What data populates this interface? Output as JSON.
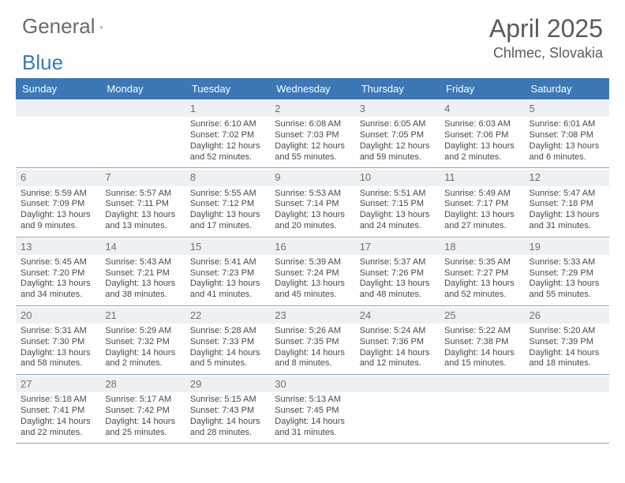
{
  "logo": {
    "text_a": "General",
    "text_b": "Blue"
  },
  "title": "April 2025",
  "location": "Chlmec, Slovakia",
  "colors": {
    "header_bg": "#3b78b5",
    "header_text": "#ffffff",
    "daynum_bg": "#eef1f4",
    "border": "#8aa9c7"
  },
  "day_headers": [
    "Sunday",
    "Monday",
    "Tuesday",
    "Wednesday",
    "Thursday",
    "Friday",
    "Saturday"
  ],
  "weeks": [
    [
      {
        "n": "",
        "sr": "",
        "ss": "",
        "dl": ""
      },
      {
        "n": "",
        "sr": "",
        "ss": "",
        "dl": ""
      },
      {
        "n": "1",
        "sr": "Sunrise: 6:10 AM",
        "ss": "Sunset: 7:02 PM",
        "dl": "Daylight: 12 hours and 52 minutes."
      },
      {
        "n": "2",
        "sr": "Sunrise: 6:08 AM",
        "ss": "Sunset: 7:03 PM",
        "dl": "Daylight: 12 hours and 55 minutes."
      },
      {
        "n": "3",
        "sr": "Sunrise: 6:05 AM",
        "ss": "Sunset: 7:05 PM",
        "dl": "Daylight: 12 hours and 59 minutes."
      },
      {
        "n": "4",
        "sr": "Sunrise: 6:03 AM",
        "ss": "Sunset: 7:06 PM",
        "dl": "Daylight: 13 hours and 2 minutes."
      },
      {
        "n": "5",
        "sr": "Sunrise: 6:01 AM",
        "ss": "Sunset: 7:08 PM",
        "dl": "Daylight: 13 hours and 6 minutes."
      }
    ],
    [
      {
        "n": "6",
        "sr": "Sunrise: 5:59 AM",
        "ss": "Sunset: 7:09 PM",
        "dl": "Daylight: 13 hours and 9 minutes."
      },
      {
        "n": "7",
        "sr": "Sunrise: 5:57 AM",
        "ss": "Sunset: 7:11 PM",
        "dl": "Daylight: 13 hours and 13 minutes."
      },
      {
        "n": "8",
        "sr": "Sunrise: 5:55 AM",
        "ss": "Sunset: 7:12 PM",
        "dl": "Daylight: 13 hours and 17 minutes."
      },
      {
        "n": "9",
        "sr": "Sunrise: 5:53 AM",
        "ss": "Sunset: 7:14 PM",
        "dl": "Daylight: 13 hours and 20 minutes."
      },
      {
        "n": "10",
        "sr": "Sunrise: 5:51 AM",
        "ss": "Sunset: 7:15 PM",
        "dl": "Daylight: 13 hours and 24 minutes."
      },
      {
        "n": "11",
        "sr": "Sunrise: 5:49 AM",
        "ss": "Sunset: 7:17 PM",
        "dl": "Daylight: 13 hours and 27 minutes."
      },
      {
        "n": "12",
        "sr": "Sunrise: 5:47 AM",
        "ss": "Sunset: 7:18 PM",
        "dl": "Daylight: 13 hours and 31 minutes."
      }
    ],
    [
      {
        "n": "13",
        "sr": "Sunrise: 5:45 AM",
        "ss": "Sunset: 7:20 PM",
        "dl": "Daylight: 13 hours and 34 minutes."
      },
      {
        "n": "14",
        "sr": "Sunrise: 5:43 AM",
        "ss": "Sunset: 7:21 PM",
        "dl": "Daylight: 13 hours and 38 minutes."
      },
      {
        "n": "15",
        "sr": "Sunrise: 5:41 AM",
        "ss": "Sunset: 7:23 PM",
        "dl": "Daylight: 13 hours and 41 minutes."
      },
      {
        "n": "16",
        "sr": "Sunrise: 5:39 AM",
        "ss": "Sunset: 7:24 PM",
        "dl": "Daylight: 13 hours and 45 minutes."
      },
      {
        "n": "17",
        "sr": "Sunrise: 5:37 AM",
        "ss": "Sunset: 7:26 PM",
        "dl": "Daylight: 13 hours and 48 minutes."
      },
      {
        "n": "18",
        "sr": "Sunrise: 5:35 AM",
        "ss": "Sunset: 7:27 PM",
        "dl": "Daylight: 13 hours and 52 minutes."
      },
      {
        "n": "19",
        "sr": "Sunrise: 5:33 AM",
        "ss": "Sunset: 7:29 PM",
        "dl": "Daylight: 13 hours and 55 minutes."
      }
    ],
    [
      {
        "n": "20",
        "sr": "Sunrise: 5:31 AM",
        "ss": "Sunset: 7:30 PM",
        "dl": "Daylight: 13 hours and 58 minutes."
      },
      {
        "n": "21",
        "sr": "Sunrise: 5:29 AM",
        "ss": "Sunset: 7:32 PM",
        "dl": "Daylight: 14 hours and 2 minutes."
      },
      {
        "n": "22",
        "sr": "Sunrise: 5:28 AM",
        "ss": "Sunset: 7:33 PM",
        "dl": "Daylight: 14 hours and 5 minutes."
      },
      {
        "n": "23",
        "sr": "Sunrise: 5:26 AM",
        "ss": "Sunset: 7:35 PM",
        "dl": "Daylight: 14 hours and 8 minutes."
      },
      {
        "n": "24",
        "sr": "Sunrise: 5:24 AM",
        "ss": "Sunset: 7:36 PM",
        "dl": "Daylight: 14 hours and 12 minutes."
      },
      {
        "n": "25",
        "sr": "Sunrise: 5:22 AM",
        "ss": "Sunset: 7:38 PM",
        "dl": "Daylight: 14 hours and 15 minutes."
      },
      {
        "n": "26",
        "sr": "Sunrise: 5:20 AM",
        "ss": "Sunset: 7:39 PM",
        "dl": "Daylight: 14 hours and 18 minutes."
      }
    ],
    [
      {
        "n": "27",
        "sr": "Sunrise: 5:18 AM",
        "ss": "Sunset: 7:41 PM",
        "dl": "Daylight: 14 hours and 22 minutes."
      },
      {
        "n": "28",
        "sr": "Sunrise: 5:17 AM",
        "ss": "Sunset: 7:42 PM",
        "dl": "Daylight: 14 hours and 25 minutes."
      },
      {
        "n": "29",
        "sr": "Sunrise: 5:15 AM",
        "ss": "Sunset: 7:43 PM",
        "dl": "Daylight: 14 hours and 28 minutes."
      },
      {
        "n": "30",
        "sr": "Sunrise: 5:13 AM",
        "ss": "Sunset: 7:45 PM",
        "dl": "Daylight: 14 hours and 31 minutes."
      },
      {
        "n": "",
        "sr": "",
        "ss": "",
        "dl": ""
      },
      {
        "n": "",
        "sr": "",
        "ss": "",
        "dl": ""
      },
      {
        "n": "",
        "sr": "",
        "ss": "",
        "dl": ""
      }
    ]
  ]
}
